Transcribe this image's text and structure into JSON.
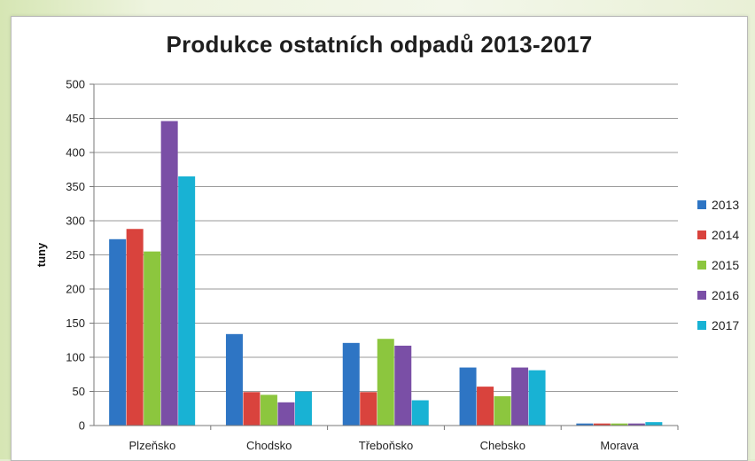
{
  "chart_data": {
    "type": "bar",
    "title": "Produkce ostatních odpadů 2013-2017",
    "xlabel": "",
    "ylabel": "tuny",
    "ylim": [
      0,
      500
    ],
    "yticks": [
      0,
      50,
      100,
      150,
      200,
      250,
      300,
      350,
      400,
      450,
      500
    ],
    "grid": true,
    "legend_position": "right",
    "categories": [
      "Plzeňsko",
      "Chodsko",
      "Třeboňsko",
      "Chebsko",
      "Morava"
    ],
    "series": [
      {
        "name": "2013",
        "color": "#2e75c4",
        "values": [
          273,
          134,
          121,
          85,
          3
        ]
      },
      {
        "name": "2014",
        "color": "#d9433d",
        "values": [
          288,
          49,
          49,
          57,
          3
        ]
      },
      {
        "name": "2015",
        "color": "#8cc63e",
        "values": [
          255,
          45,
          127,
          43,
          3
        ]
      },
      {
        "name": "2016",
        "color": "#7a4fa6",
        "values": [
          446,
          34,
          117,
          85,
          3
        ]
      },
      {
        "name": "2017",
        "color": "#18b2d4",
        "values": [
          365,
          50,
          37,
          81,
          5
        ]
      }
    ]
  }
}
